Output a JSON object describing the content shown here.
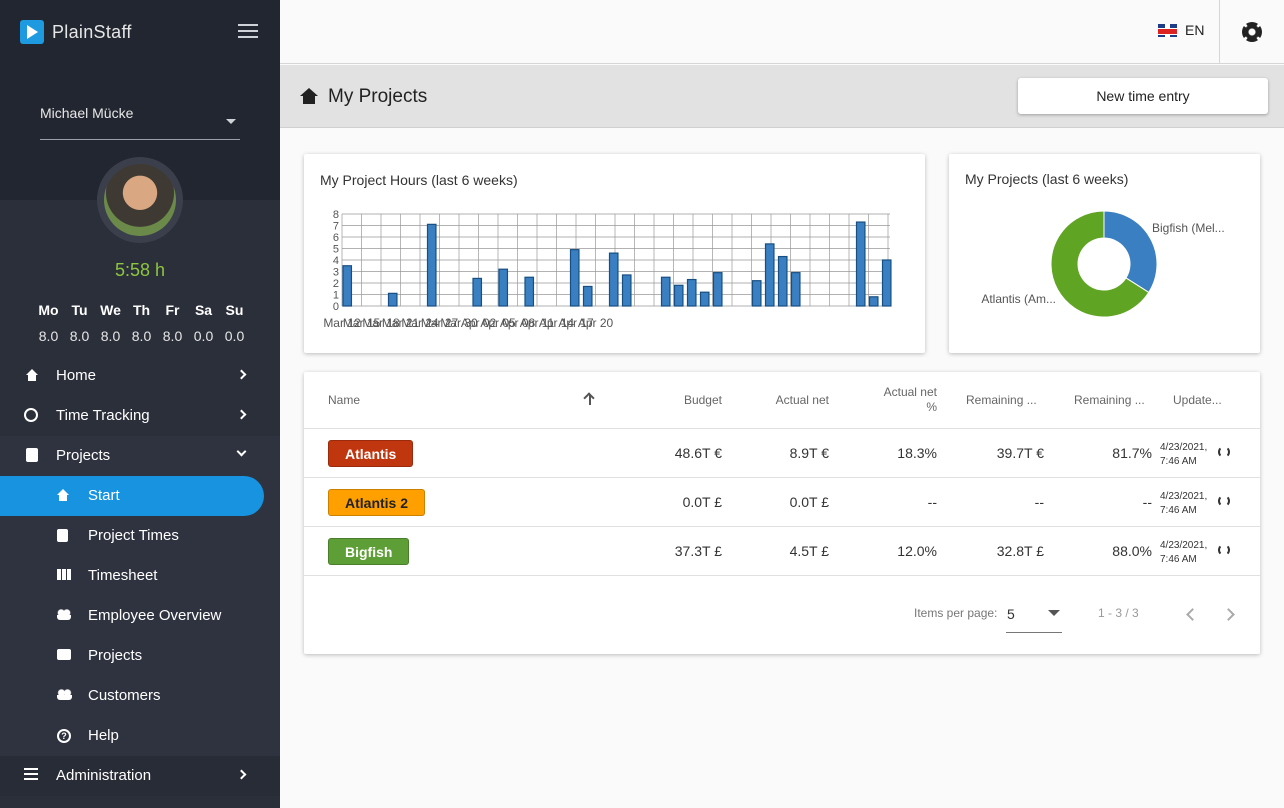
{
  "app": {
    "name": "PlainStaff"
  },
  "user": {
    "name": "Michael Mücke",
    "hours_today": "5:58 h"
  },
  "week": {
    "days": [
      "Mo",
      "Tu",
      "We",
      "Th",
      "Fr",
      "Sa",
      "Su"
    ],
    "hours": [
      "8.0",
      "8.0",
      "8.0",
      "8.0",
      "8.0",
      "0.0",
      "0.0"
    ]
  },
  "nav": {
    "home": "Home",
    "time_tracking": "Time Tracking",
    "projects": "Projects",
    "sub": {
      "start": "Start",
      "project_times": "Project Times",
      "timesheet": "Timesheet",
      "employee_overview": "Employee Overview",
      "projects": "Projects",
      "customers": "Customers",
      "help": "Help"
    },
    "administration": "Administration"
  },
  "header": {
    "language": "EN"
  },
  "page": {
    "title": "My Projects",
    "new_entry_label": "New time entry"
  },
  "chart_data": [
    {
      "type": "bar",
      "title": "My Project Hours (last 6 weeks)",
      "ylim": [
        0,
        8
      ],
      "yticks": [
        0,
        1,
        2,
        3,
        4,
        5,
        6,
        7,
        8
      ],
      "xtick_labels": [
        "Mar 12",
        "Mar 15",
        "Mar 18",
        "Mar 21",
        "Mar 24",
        "Mar 27",
        "Mar 30",
        "Apr 02",
        "Apr 05",
        "Apr 08",
        "Apr 11",
        "Apr 14",
        "Apr 17",
        "Apr 20"
      ],
      "start_label": "Mar 12",
      "values": [
        3.5,
        0,
        0,
        0,
        0,
        0,
        0,
        1.1,
        0,
        0,
        0,
        0,
        0,
        7.1,
        0,
        0,
        0,
        0,
        0,
        0,
        2.4,
        0,
        0,
        0,
        3.2,
        0,
        0,
        0,
        2.5,
        0,
        0,
        0,
        0,
        0,
        0,
        4.9,
        0,
        1.7,
        0,
        0,
        0,
        4.6,
        0,
        2.7,
        0,
        0,
        0,
        0,
        0,
        2.5,
        0,
        1.8,
        0,
        2.3,
        0,
        1.2,
        0,
        2.9,
        0,
        0,
        0,
        0,
        0,
        2.2,
        0,
        5.4,
        0,
        4.3,
        0,
        2.9,
        0,
        0,
        0,
        0,
        0,
        0,
        0,
        0,
        0,
        7.3,
        0,
        0.8,
        0,
        4.0
      ],
      "color": "#3a7fc1"
    },
    {
      "type": "pie",
      "title": "My Projects (last 6 weeks)",
      "donut": true,
      "slices": [
        {
          "label": "Bigfish (Mel...",
          "value": 34,
          "color": "#3a7fc1"
        },
        {
          "label": "Atlantis (Am...",
          "value": 66,
          "color": "#5fa523"
        }
      ]
    }
  ],
  "table": {
    "headers": {
      "name": "Name",
      "budget": "Budget",
      "actual_net": "Actual net",
      "actual_net_pct_1": "Actual net",
      "actual_net_pct_2": "%",
      "remaining_1": "Remaining ...",
      "remaining_2": "Remaining ...",
      "updated": "Update..."
    },
    "rows": [
      {
        "name": "Atlantis",
        "chip_color": "#c0360f",
        "chip_text": "#ffffff",
        "budget": "48.6T €",
        "actual": "8.9T €",
        "pct": "18.3%",
        "remaining": "39.7T €",
        "remaining_pct": "81.7%",
        "updated_1": "4/23/2021,",
        "updated_2": "7:46 AM"
      },
      {
        "name": "Atlantis 2",
        "chip_color": "#ffa000",
        "chip_text": "#222222",
        "budget": "0.0T £",
        "actual": "0.0T £",
        "pct": "--",
        "remaining": "--",
        "remaining_pct": "--",
        "updated_1": "4/23/2021,",
        "updated_2": "7:46 AM"
      },
      {
        "name": "Bigfish",
        "chip_color": "#5e9e36",
        "chip_text": "#ffffff",
        "budget": "37.3T £",
        "actual": "4.5T £",
        "pct": "12.0%",
        "remaining": "32.8T £",
        "remaining_pct": "88.0%",
        "updated_1": "4/23/2021,",
        "updated_2": "7:46 AM"
      }
    ]
  },
  "pager": {
    "items_per_page_label": "Items per page:",
    "page_size": "5",
    "range": "1 - 3 / 3"
  }
}
